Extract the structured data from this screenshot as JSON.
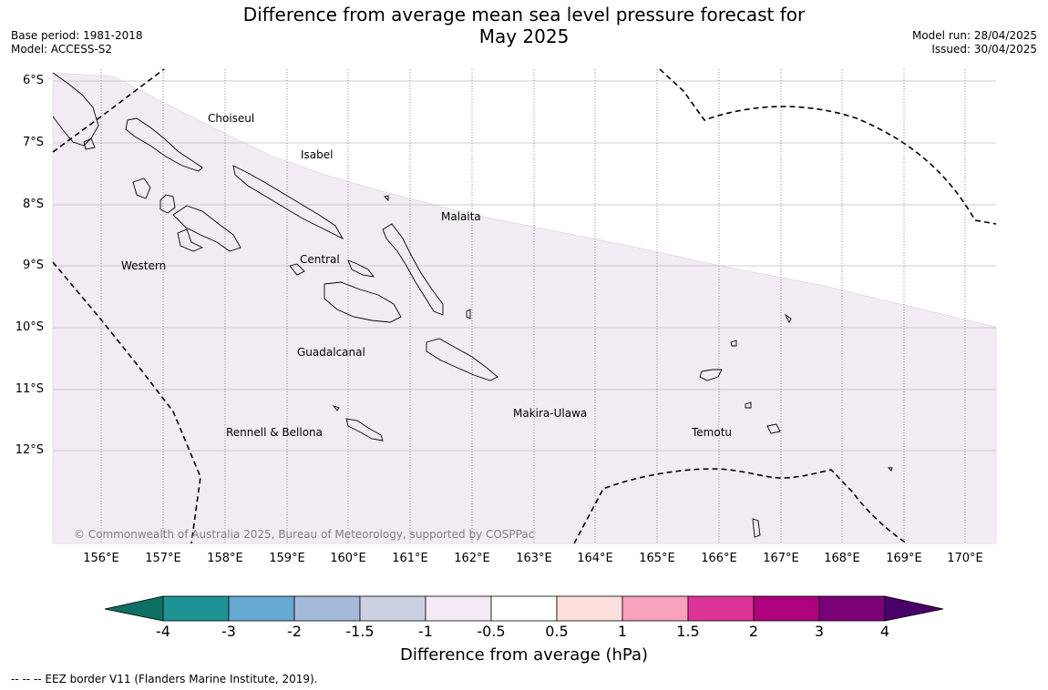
{
  "title": {
    "line1": "Difference from average mean sea level pressure forecast for",
    "line2": "May 2025"
  },
  "meta_left": {
    "base_period": "Base period: 1981-2018",
    "model": "Model: ACCESS-S2"
  },
  "meta_right": {
    "model_run": "Model run: 28/04/2025",
    "issued": "Issued: 30/04/2025"
  },
  "map": {
    "lat_labels": [
      "6°S",
      "7°S",
      "8°S",
      "9°S",
      "10°S",
      "11°S",
      "12°S"
    ],
    "lon_labels": [
      "156°E",
      "157°E",
      "158°E",
      "159°E",
      "160°E",
      "161°E",
      "162°E",
      "163°E",
      "164°E",
      "165°E",
      "166°E",
      "167°E",
      "168°E",
      "169°E",
      "170°E"
    ],
    "regions": [
      "Choiseul",
      "Isabel",
      "Malaita",
      "Western",
      "Central",
      "Guadalcanal",
      "Makira-Ulawa",
      "Rennell & Bellona",
      "Temotu"
    ],
    "shading_color": "#f3ebf4",
    "copyright": "© Commonwealth of Australia 2025, Bureau of Meteorology, supported by COSPPac"
  },
  "colorbar": {
    "ticks": [
      "-4",
      "-3",
      "-2",
      "-1.5",
      "-1",
      "-0.5",
      "0.5",
      "1",
      "1.5",
      "2",
      "3",
      "4"
    ],
    "colors": [
      "#0e6f63",
      "#1f9294",
      "#67a8d2",
      "#a5b9da",
      "#ccd0e3",
      "#f3ebf4",
      "#ffffff",
      "#fde0de",
      "#f8a1bb",
      "#dd3498",
      "#ae017e",
      "#7a0177",
      "#49006a"
    ],
    "label": "Difference from average (hPa)"
  },
  "legend": {
    "eez": "--  --  -- EEZ border V11 (Flanders Marine Institute, 2019)."
  }
}
